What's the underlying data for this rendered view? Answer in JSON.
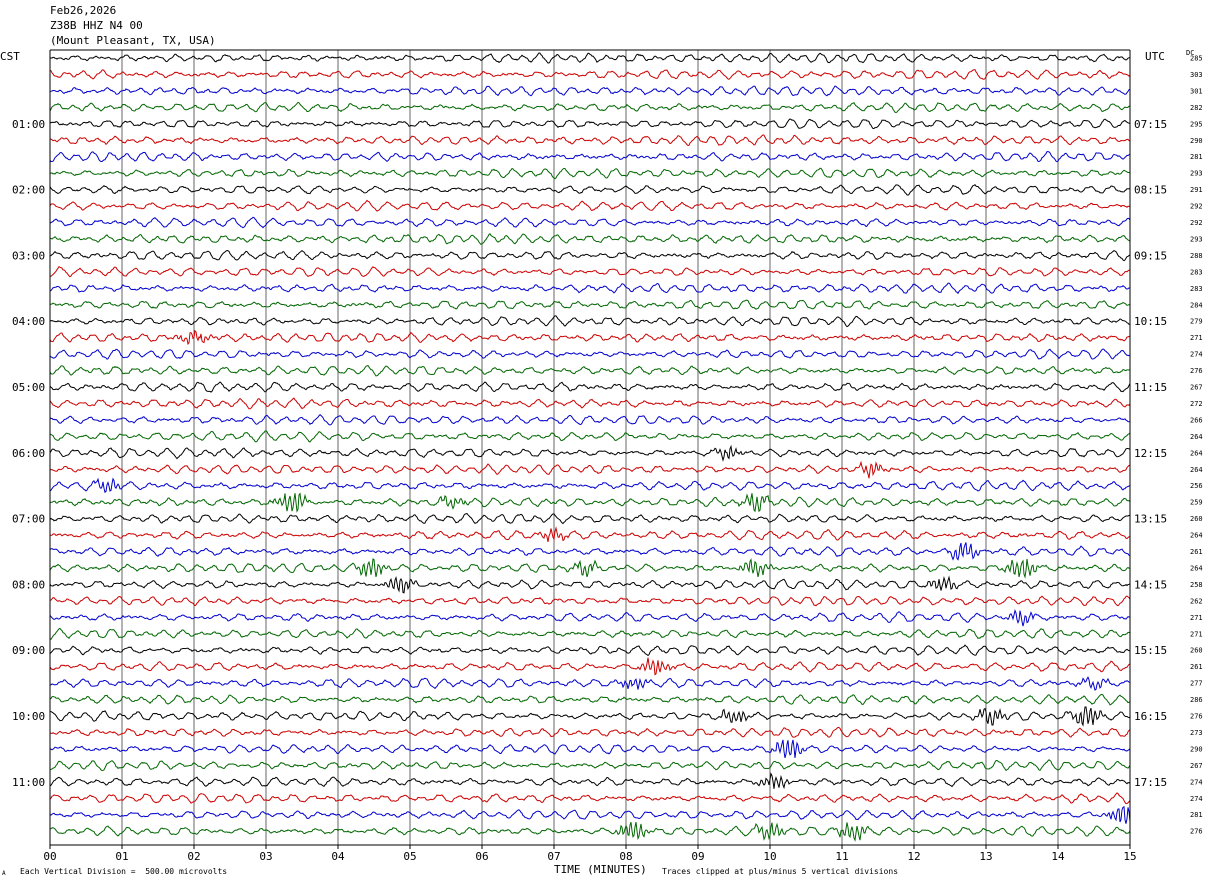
{
  "header": {
    "date": "Feb26,2026",
    "station": "Z38B HHZ N4 00",
    "location": "(Mount Pleasant, TX, USA)"
  },
  "left_tz": "CST",
  "right_tz": "UTC",
  "dc_label": "DC",
  "footer": {
    "scale_note": "Each Vertical Division =  500.00 microvolts",
    "axis_title": "TIME (MINUTES)",
    "clip_note": "Traces clipped at plus/minus 5 vertical divisions",
    "corner_mark": "A"
  },
  "colors": {
    "trace_cycle": [
      "#000000",
      "#cc0000",
      "#0000cc",
      "#006600"
    ],
    "grid": "#000000"
  },
  "chart_data": {
    "type": "line",
    "title": "",
    "xlabel": "TIME (MINUTES)",
    "x_ticks": [
      "00",
      "01",
      "02",
      "03",
      "04",
      "05",
      "06",
      "07",
      "08",
      "09",
      "10",
      "11",
      "12",
      "13",
      "14",
      "15"
    ],
    "xlim": [
      0,
      15
    ],
    "grid": true,
    "rows": 48,
    "row_minutes": 15,
    "left_hour_labels": [
      "01:00",
      "02:00",
      "03:00",
      "04:00",
      "05:00",
      "06:00",
      "07:00",
      "08:00",
      "09:00",
      "10:00",
      "11:00"
    ],
    "right_hour_labels": [
      "07:15",
      "08:15",
      "09:15",
      "10:15",
      "11:15",
      "12:15",
      "13:15",
      "14:15",
      "15:15",
      "16:15",
      "17:15"
    ],
    "hour_label_rows": [
      4,
      8,
      12,
      16,
      20,
      24,
      28,
      32,
      36,
      40,
      44
    ],
    "dc_values": [
      285,
      303,
      301,
      282,
      295,
      290,
      281,
      293,
      291,
      292,
      292,
      293,
      288,
      283,
      283,
      284,
      279,
      271,
      274,
      276,
      267,
      272,
      266,
      264,
      264,
      264,
      256,
      259,
      260,
      264,
      261,
      264,
      258,
      262,
      271,
      271,
      260,
      261,
      277,
      286,
      276,
      273,
      290,
      267,
      274,
      274,
      281,
      276
    ],
    "events": [
      {
        "row": 17,
        "minute": 2.0,
        "amp": 1.8
      },
      {
        "row": 24,
        "minute": 9.4,
        "amp": 1.5
      },
      {
        "row": 25,
        "minute": 11.4,
        "amp": 1.8
      },
      {
        "row": 26,
        "minute": 0.8,
        "amp": 1.7
      },
      {
        "row": 27,
        "minute": 3.35,
        "amp": 3.5
      },
      {
        "row": 27,
        "minute": 5.6,
        "amp": 1.5
      },
      {
        "row": 27,
        "minute": 9.8,
        "amp": 2.5
      },
      {
        "row": 29,
        "minute": 7.0,
        "amp": 1.5
      },
      {
        "row": 30,
        "minute": 12.7,
        "amp": 2.5
      },
      {
        "row": 31,
        "minute": 4.45,
        "amp": 2.6
      },
      {
        "row": 31,
        "minute": 7.45,
        "amp": 1.6
      },
      {
        "row": 31,
        "minute": 9.8,
        "amp": 2.4
      },
      {
        "row": 31,
        "minute": 13.5,
        "amp": 3.0
      },
      {
        "row": 32,
        "minute": 4.85,
        "amp": 2.5
      },
      {
        "row": 32,
        "minute": 12.4,
        "amp": 1.6
      },
      {
        "row": 34,
        "minute": 13.5,
        "amp": 1.8
      },
      {
        "row": 37,
        "minute": 8.4,
        "amp": 2.4
      },
      {
        "row": 38,
        "minute": 8.1,
        "amp": 1.5
      },
      {
        "row": 38,
        "minute": 14.5,
        "amp": 1.5
      },
      {
        "row": 40,
        "minute": 9.5,
        "amp": 1.8
      },
      {
        "row": 40,
        "minute": 13.05,
        "amp": 2.2
      },
      {
        "row": 40,
        "minute": 14.4,
        "amp": 3.2
      },
      {
        "row": 42,
        "minute": 10.25,
        "amp": 4.0
      },
      {
        "row": 44,
        "minute": 10.05,
        "amp": 2.0
      },
      {
        "row": 46,
        "minute": 14.9,
        "amp": 3.0
      },
      {
        "row": 47,
        "minute": 8.1,
        "amp": 2.5
      },
      {
        "row": 47,
        "minute": 10.0,
        "amp": 2.0
      },
      {
        "row": 47,
        "minute": 11.15,
        "amp": 2.5
      }
    ]
  }
}
